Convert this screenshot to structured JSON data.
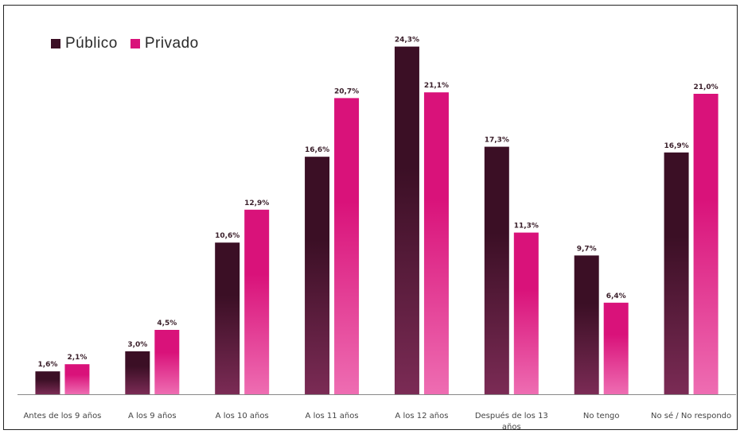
{
  "legend": {
    "publico": "Público",
    "privado": "Privado"
  },
  "colors": {
    "publico_top": "#3b0f25",
    "publico_bottom": "#7b2b55",
    "privado_top": "#d9127a",
    "privado_bottom": "#ee6db2",
    "axis": "#888888"
  },
  "chart_data": {
    "type": "bar",
    "title": "",
    "xlabel": "",
    "ylabel": "",
    "ylim": [
      0,
      25
    ],
    "grid": false,
    "legend_position": "top-left",
    "categories": [
      [
        "Antes de los 9 años"
      ],
      [
        "A los 9 años"
      ],
      [
        "A los 10 años"
      ],
      [
        "A los 11 años"
      ],
      [
        "A los 12 años"
      ],
      [
        "Después de los 13",
        "años"
      ],
      [
        "No tengo"
      ],
      [
        "No sé / No respondo"
      ]
    ],
    "series": [
      {
        "name": "Público",
        "values": [
          1.6,
          3.0,
          10.6,
          16.6,
          24.3,
          17.3,
          9.7,
          16.9
        ],
        "labels": [
          "1,6%",
          "3,0%",
          "10,6%",
          "16,6%",
          "24,3%",
          "17,3%",
          "9,7%",
          "16,9%"
        ]
      },
      {
        "name": "Privado",
        "values": [
          2.1,
          4.5,
          12.9,
          20.7,
          21.1,
          11.3,
          6.4,
          21.0
        ],
        "labels": [
          "2,1%",
          "4,5%",
          "12,9%",
          "20,7%",
          "21,1%",
          "11,3%",
          "6,4%",
          "21,0%"
        ]
      }
    ]
  }
}
